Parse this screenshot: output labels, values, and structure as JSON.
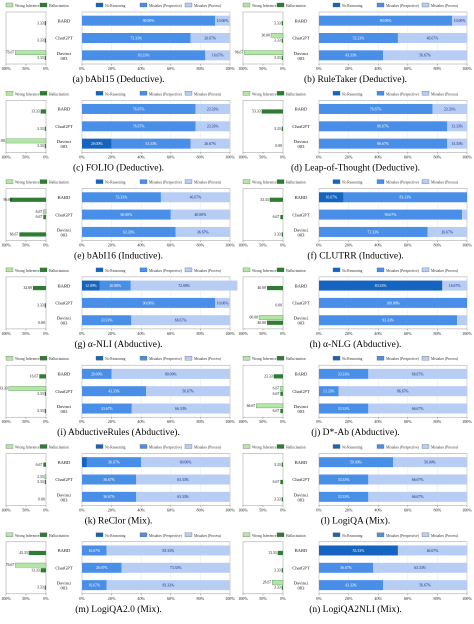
{
  "colors": {
    "wrong_inference": "#b5e6a6",
    "hallucination": "#2e7d32",
    "no_reasoning": "#1565c0",
    "mistakes_perspective": "#4a8fe7",
    "mistakes_process": "#b7cdf4"
  },
  "legend": {
    "left": [
      "Wrong Inference",
      "Hallucination"
    ],
    "right": [
      "No Reasoning",
      "Mistakes (Perspective)",
      "Mistakes (Process)"
    ]
  },
  "models": [
    "BARD",
    "ChatGPT",
    "Davinci 003"
  ],
  "chart_data": [
    {
      "type": "bar",
      "caption": "(a) bAbI15 (Deductive).",
      "models": [
        "BARD",
        "ChatGPT",
        "Davinci 003"
      ],
      "left": {
        "wrong_inference": [
          0,
          0,
          76.67
        ],
        "hallucination": [
          3.33,
          3.33,
          3.33
        ],
        "ticks": [
          "100%",
          "50%",
          "0%"
        ]
      },
      "right": {
        "no_reasoning": [
          0,
          0,
          0
        ],
        "mistakes_perspective": [
          90.0,
          73.33,
          83.33
        ],
        "mistakes_process": [
          10.0,
          26.67,
          16.67
        ],
        "ticks": [
          "0%",
          "20%",
          "40%",
          "60%",
          "80%",
          "100%"
        ]
      }
    },
    {
      "type": "bar",
      "caption": "(b) RuleTaker (Deductive).",
      "models": [
        "BARD",
        "ChatGPT",
        "Davinci 003"
      ],
      "left": {
        "wrong_inference": [
          0,
          30.0,
          96.67
        ],
        "hallucination": [
          3.33,
          3.33,
          3.33
        ],
        "ticks": [
          "100%",
          "50%",
          "0%"
        ]
      },
      "right": {
        "no_reasoning": [
          0,
          0,
          0
        ],
        "mistakes_perspective": [
          90.0,
          53.33,
          43.33
        ],
        "mistakes_process": [
          10.0,
          46.67,
          56.67
        ],
        "ticks": [
          "0%",
          "20%",
          "40%",
          "60%",
          "80%",
          "100%"
        ]
      }
    },
    {
      "type": "bar",
      "caption": "(c) FOLIO (Deductive).",
      "models": [
        "BARD",
        "ChatGPT",
        "Davinci 003"
      ],
      "left": {
        "wrong_inference": [
          0,
          0,
          100.0
        ],
        "hallucination": [
          13.33,
          3.33,
          3.33
        ],
        "ticks": [
          "100%",
          "50%",
          "0%"
        ]
      },
      "right": {
        "no_reasoning": [
          0,
          0,
          20.0
        ],
        "mistakes_perspective": [
          76.67,
          76.67,
          53.33
        ],
        "mistakes_process": [
          23.33,
          23.33,
          26.67
        ],
        "ticks": [
          "0%",
          "20%",
          "40%",
          "60%",
          "80%",
          "100%"
        ]
      }
    },
    {
      "type": "bar",
      "caption": "(d) Leap-of-Thought (Deductive).",
      "models": [
        "BARD",
        "ChatGPT",
        "Davinci 003"
      ],
      "left": {
        "wrong_inference": [
          0,
          0,
          0
        ],
        "hallucination": [
          53.33,
          3.33,
          0
        ],
        "ticks": [
          "100%",
          "50%",
          "0%"
        ]
      },
      "right": {
        "no_reasoning": [
          0,
          0,
          0
        ],
        "mistakes_perspective": [
          76.67,
          86.67,
          86.67
        ],
        "mistakes_process": [
          23.33,
          13.33,
          13.33
        ],
        "ticks": [
          "0%",
          "20%",
          "40%",
          "60%",
          "80%",
          "100%"
        ]
      }
    },
    {
      "type": "bar",
      "caption": "(e) bAbI16 (Inductive).",
      "models": [
        "BARD",
        "ChatGPT",
        "Davinci 003"
      ],
      "left": {
        "wrong_inference": [
          0,
          6.67,
          0
        ],
        "hallucination": [
          90.0,
          6.67,
          66.67
        ],
        "ticks": [
          "100%",
          "50%",
          "0%"
        ]
      },
      "right": {
        "no_reasoning": [
          0,
          0,
          0
        ],
        "mistakes_perspective": [
          53.33,
          60.0,
          63.33
        ],
        "mistakes_process": [
          46.67,
          40.0,
          36.67
        ],
        "ticks": [
          "0%",
          "20%",
          "40%",
          "60%",
          "80%",
          "100%"
        ]
      }
    },
    {
      "type": "bar",
      "caption": "(f) CLUTRR (Inductive).",
      "models": [
        "BARD",
        "ChatGPT",
        "Davinci 003"
      ],
      "left": {
        "wrong_inference": [
          0,
          0,
          0
        ],
        "hallucination": [
          33.33,
          6.67,
          3.33
        ],
        "ticks": [
          "100%",
          "50%",
          "0%"
        ]
      },
      "right": {
        "no_reasoning": [
          16.67,
          0,
          0
        ],
        "mistakes_perspective": [
          83.33,
          96.67,
          73.33
        ],
        "mistakes_process": [
          0,
          3.33,
          26.67
        ],
        "ticks": [
          "0%",
          "20%",
          "40%",
          "60%",
          "80%",
          "100%"
        ]
      }
    },
    {
      "type": "bar",
      "caption": "(g) α-NLI (Abductive).",
      "models": [
        "BARD",
        "ChatGPT",
        "Davinci 003"
      ],
      "left": {
        "wrong_inference": [
          0,
          0,
          0
        ],
        "hallucination": [
          32.69,
          3.33,
          0
        ],
        "ticks": [
          "100%",
          "50%",
          "0%"
        ]
      },
      "right": {
        "no_reasoning": [
          12.09,
          0,
          0
        ],
        "mistakes_perspective": [
          20.88,
          90.0,
          33.33
        ],
        "mistakes_process": [
          72.0,
          10.0,
          66.67
        ],
        "ticks": [
          "0%",
          "20%",
          "40%",
          "60%",
          "80%",
          "100%"
        ]
      }
    },
    {
      "type": "bar",
      "caption": "(h) α-NLG (Abductive).",
      "models": [
        "BARD",
        "ChatGPT",
        "Davinci 003"
      ],
      "left": {
        "wrong_inference": [
          0,
          0,
          60.0
        ],
        "hallucination": [
          40.0,
          0,
          40.0
        ],
        "ticks": [
          "100%",
          "50%",
          "0%"
        ]
      },
      "right": {
        "no_reasoning": [
          83.33,
          0,
          0
        ],
        "mistakes_perspective": [
          0,
          100.0,
          93.33
        ],
        "mistakes_process": [
          16.67,
          0,
          6.67
        ],
        "ticks": [
          "0%",
          "20%",
          "40%",
          "60%",
          "80%",
          "100%"
        ]
      }
    },
    {
      "type": "bar",
      "caption": "(i) AbductiveRules (Abductive).",
      "models": [
        "BARD",
        "ChatGPT",
        "Davinci 003"
      ],
      "left": {
        "wrong_inference": [
          0,
          93.33,
          0
        ],
        "hallucination": [
          16.67,
          3.33,
          3.33
        ],
        "ticks": [
          "100%",
          "50%",
          "0%"
        ]
      },
      "right": {
        "no_reasoning": [
          0,
          0,
          0
        ],
        "mistakes_perspective": [
          20.0,
          43.33,
          33.67
        ],
        "mistakes_process": [
          80.0,
          56.67,
          66.33
        ],
        "ticks": [
          "0%",
          "20%",
          "40%",
          "60%",
          "80%",
          "100%"
        ]
      }
    },
    {
      "type": "bar",
      "caption": "(j) D*-Ab (Abductive).",
      "models": [
        "BARD",
        "ChatGPT",
        "Davinci 003"
      ],
      "left": {
        "wrong_inference": [
          0,
          6.67,
          66.67
        ],
        "hallucination": [
          23.33,
          6.67,
          6.67
        ],
        "ticks": [
          "100%",
          "50%",
          "0%"
        ]
      },
      "right": {
        "no_reasoning": [
          0,
          0,
          0
        ],
        "mistakes_perspective": [
          33.33,
          13.33,
          33.33
        ],
        "mistakes_process": [
          66.67,
          86.67,
          66.67
        ],
        "ticks": [
          "0%",
          "20%",
          "40%",
          "60%",
          "80%",
          "100%"
        ]
      }
    },
    {
      "type": "bar",
      "caption": "(k) ReClor (Mix).",
      "models": [
        "BARD",
        "ChatGPT",
        "Davinci 003"
      ],
      "left": {
        "wrong_inference": [
          0,
          3.33,
          0
        ],
        "hallucination": [
          6.67,
          3.33,
          0
        ],
        "ticks": [
          "100%",
          "50%",
          "0%"
        ]
      },
      "right": {
        "no_reasoning": [
          3.33,
          0,
          0
        ],
        "mistakes_perspective": [
          36.67,
          36.67,
          36.67
        ],
        "mistakes_process": [
          60.0,
          63.33,
          63.33
        ],
        "ticks": [
          "0%",
          "20%",
          "40%",
          "60%",
          "80%",
          "100%"
        ]
      }
    },
    {
      "type": "bar",
      "caption": "(l) LogiQA (Mix).",
      "models": [
        "BARD",
        "ChatGPT",
        "Davinci 003"
      ],
      "left": {
        "wrong_inference": [
          0,
          0,
          0
        ],
        "hallucination": [
          3.33,
          6.67,
          3.33
        ],
        "ticks": [
          "100%",
          "50%",
          "0%"
        ]
      },
      "right": {
        "no_reasoning": [
          0,
          0,
          0
        ],
        "mistakes_perspective": [
          50.0,
          33.33,
          33.33
        ],
        "mistakes_process": [
          50.0,
          66.67,
          66.67
        ],
        "ticks": [
          "0%",
          "20%",
          "40%",
          "60%",
          "80%",
          "100%"
        ]
      }
    },
    {
      "type": "bar",
      "caption": "(m) LogiQA2.0 (Mix).",
      "models": [
        "BARD",
        "ChatGPT",
        "Davinci 003"
      ],
      "left": {
        "wrong_inference": [
          0,
          76.67,
          0
        ],
        "hallucination": [
          43.33,
          13.33,
          3.33
        ],
        "ticks": [
          "100%",
          "50%",
          "0%"
        ]
      },
      "right": {
        "no_reasoning": [
          0,
          0,
          0
        ],
        "mistakes_perspective": [
          16.67,
          26.67,
          16.67
        ],
        "mistakes_process": [
          83.33,
          73.33,
          83.33
        ],
        "ticks": [
          "0%",
          "20%",
          "40%",
          "60%",
          "80%",
          "100%"
        ]
      }
    },
    {
      "type": "bar",
      "caption": "(n) LogiQA2NLI (Mix).",
      "models": [
        "BARD",
        "ChatGPT",
        "Davinci 003"
      ],
      "left": {
        "wrong_inference": [
          0,
          0,
          26.67
        ],
        "hallucination": [
          13.33,
          3.33,
          3.33
        ],
        "ticks": [
          "100%",
          "50%",
          "0%"
        ]
      },
      "right": {
        "no_reasoning": [
          53.33,
          0,
          0
        ],
        "mistakes_perspective": [
          0,
          36.67,
          43.33
        ],
        "mistakes_process": [
          46.67,
          63.33,
          56.67
        ],
        "ticks": [
          "0%",
          "20%",
          "40%",
          "60%",
          "80%",
          "100%"
        ]
      }
    }
  ]
}
